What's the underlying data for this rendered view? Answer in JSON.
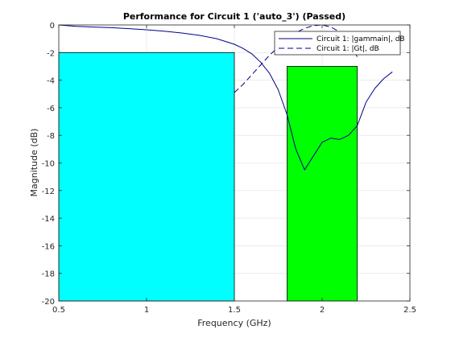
{
  "chart_data": {
    "type": "line",
    "title": "Performance for Circuit 1 ('auto_3')  (Passed)",
    "xlabel": "Frequency (GHz)",
    "ylabel": "Magnitude (dB)",
    "xlim": [
      0.5,
      2.5
    ],
    "ylim": [
      -20,
      0
    ],
    "xticks": [
      0.5,
      1,
      1.5,
      2,
      2.5
    ],
    "xtick_labels": [
      "0.5",
      "1",
      "1.5",
      "2",
      "2.5"
    ],
    "yticks": [
      0,
      -2,
      -4,
      -6,
      -8,
      -10,
      -12,
      -14,
      -16,
      -18,
      -20
    ],
    "ytick_labels": [
      "0",
      "-2",
      "-4",
      "-6",
      "-8",
      "-10",
      "-12",
      "-14",
      "-16",
      "-18",
      "-20"
    ],
    "grid": true,
    "legend_position": "top-right",
    "spec_regions": [
      {
        "x_start": 0.5,
        "x_end": 1.5,
        "y_top": -2,
        "color": "#00ffff"
      },
      {
        "x_start": 1.8,
        "x_end": 2.2,
        "y_top": -3,
        "color": "#00ff00"
      }
    ],
    "series": [
      {
        "name": "Circuit 1: |gammain|, dB",
        "style": "solid",
        "color": "#00008b",
        "x": [
          0.5,
          0.6,
          0.7,
          0.8,
          0.9,
          1.0,
          1.1,
          1.2,
          1.3,
          1.4,
          1.5,
          1.55,
          1.6,
          1.65,
          1.7,
          1.75,
          1.8,
          1.85,
          1.9,
          1.95,
          2.0,
          2.05,
          2.1,
          2.15,
          2.2,
          2.25,
          2.3,
          2.35,
          2.4
        ],
        "y": [
          0,
          -0.1,
          -0.15,
          -0.2,
          -0.27,
          -0.35,
          -0.45,
          -0.58,
          -0.75,
          -1.0,
          -1.4,
          -1.7,
          -2.1,
          -2.7,
          -3.5,
          -4.7,
          -6.5,
          -9.0,
          -10.5,
          -9.5,
          -8.5,
          -8.2,
          -8.3,
          -8.0,
          -7.3,
          -5.6,
          -4.6,
          -3.9,
          -3.4
        ]
      },
      {
        "name": "Circuit 1: |Gt|, dB",
        "style": "dashed",
        "color": "#00008b",
        "x": [
          1.5,
          1.55,
          1.6,
          1.65,
          1.7,
          1.75,
          1.8,
          1.85,
          1.9,
          1.95,
          2.0,
          2.05,
          2.1,
          2.15,
          2.2
        ],
        "y": [
          -4.9,
          -4.3,
          -3.6,
          -2.9,
          -2.2,
          -1.6,
          -1.0,
          -0.55,
          -0.25,
          -0.05,
          0,
          -0.15,
          -0.5,
          -1.2,
          -2.3
        ]
      }
    ]
  }
}
